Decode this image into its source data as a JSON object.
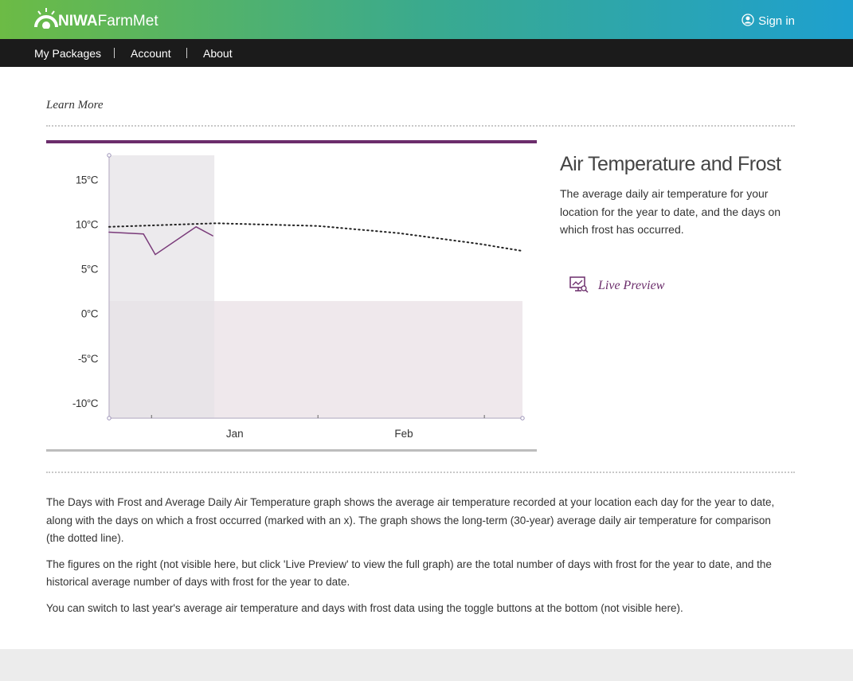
{
  "header": {
    "logo_bold": "NIWA",
    "logo_light": "FarmMet",
    "sign_in": "Sign in"
  },
  "nav": [
    "My Packages",
    "Account",
    "About"
  ],
  "section_label": "Learn More",
  "panel": {
    "title": "Air Temperature and Frost",
    "description": "The average daily air temperature for your location for the year to date, and the days on which frost has occurred.",
    "live_preview": "Live Preview"
  },
  "chart_data": {
    "type": "line",
    "xlim": [
      -7.9,
      69.1
    ],
    "xticks": [
      {
        "value": 15.5,
        "label": "Jan"
      },
      {
        "value": 47,
        "label": "Feb"
      }
    ],
    "x_tick_marks": [
      0,
      31,
      62
    ],
    "ylim": [
      -11.7,
      17.7
    ],
    "yticks": [
      {
        "value": 15,
        "label": "15°C"
      },
      {
        "value": 10,
        "label": "10°C"
      },
      {
        "value": 5,
        "label": "5°C"
      },
      {
        "value": 0,
        "label": "0°C"
      },
      {
        "value": -5,
        "label": "-5°C"
      },
      {
        "value": -10,
        "label": "-10°C"
      }
    ],
    "year_to_date_end": 11.7,
    "frost_band_top": 1.4,
    "series": [
      {
        "color": "#7a3b7a",
        "style": "solid",
        "x": [
          -7.9,
          -1.5,
          0.7,
          8.3,
          11.4
        ],
        "values": [
          9.1,
          8.9,
          6.6,
          9.7,
          8.7
        ]
      },
      {
        "color": "#222222",
        "style": "dotted",
        "x": [
          -7.9,
          12,
          31,
          46,
          61,
          69.1
        ],
        "values": [
          9.7,
          10.1,
          9.8,
          9.0,
          7.8,
          7.0
        ]
      }
    ]
  },
  "body": [
    "The Days with Frost and Average Daily Air Temperature graph shows the average air temperature recorded at your location each day for the year to date, along with the days on which a frost occurred (marked with an x). The graph shows the long-term (30-year) average daily air temperature for comparison (the dotted line).",
    "The figures on the right (not visible here, but click 'Live Preview' to view the full graph) are the total number of days with frost for the year to date, and the historical average number of days with frost for the year to date.",
    "You can switch to last year's average air temperature and days with frost data using the toggle buttons at the bottom (not visible here)."
  ]
}
